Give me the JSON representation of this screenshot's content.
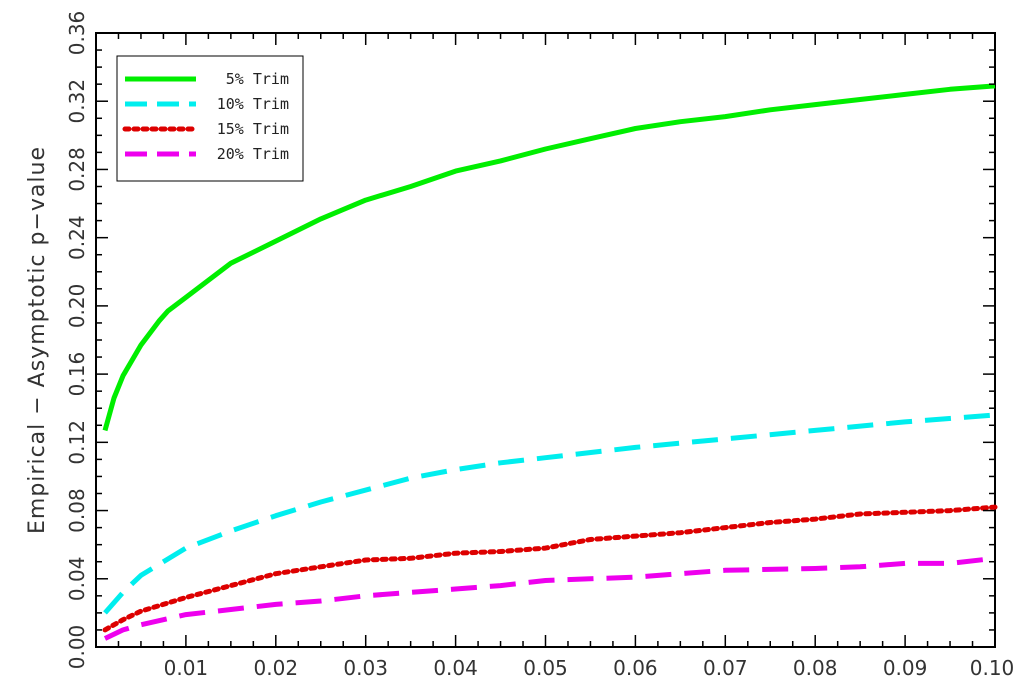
{
  "chart_data": {
    "type": "line",
    "xlabel": "",
    "ylabel": "Empirical  −  Asymptotic  p−value",
    "xlim": [
      0.0,
      0.1
    ],
    "ylim": [
      0.0,
      0.36
    ],
    "x_ticks": [
      0.01,
      0.02,
      0.03,
      0.04,
      0.05,
      0.06,
      0.07,
      0.08,
      0.09,
      0.1
    ],
    "x_tick_labels": [
      "0.01",
      "0.02",
      "0.03",
      "0.04",
      "0.05",
      "0.06",
      "0.07",
      "0.08",
      "0.09",
      "0.10"
    ],
    "y_ticks": [
      0.0,
      0.04,
      0.08,
      0.12,
      0.16,
      0.2,
      0.24,
      0.28,
      0.32,
      0.36
    ],
    "y_tick_labels": [
      "0.00",
      "0.04",
      "0.08",
      "0.12",
      "0.16",
      "0.20",
      "0.24",
      "0.28",
      "0.32",
      "0.36"
    ],
    "grid": false,
    "legend_position": "top-left",
    "series": [
      {
        "name": "5% Trim",
        "color": "#00ee00",
        "style": "solid",
        "x": [
          0.001,
          0.002,
          0.003,
          0.005,
          0.007,
          0.008,
          0.01,
          0.015,
          0.02,
          0.025,
          0.03,
          0.035,
          0.04,
          0.045,
          0.05,
          0.055,
          0.06,
          0.065,
          0.07,
          0.075,
          0.08,
          0.085,
          0.09,
          0.095,
          0.1
        ],
        "values": [
          0.127,
          0.146,
          0.159,
          0.177,
          0.191,
          0.197,
          0.205,
          0.225,
          0.238,
          0.251,
          0.262,
          0.27,
          0.279,
          0.285,
          0.292,
          0.298,
          0.304,
          0.308,
          0.311,
          0.315,
          0.318,
          0.321,
          0.324,
          0.327,
          0.329
        ]
      },
      {
        "name": "10% Trim",
        "color": "#00eeee",
        "style": "dashed",
        "x": [
          0.001,
          0.003,
          0.005,
          0.01,
          0.015,
          0.02,
          0.025,
          0.03,
          0.035,
          0.04,
          0.045,
          0.05,
          0.06,
          0.07,
          0.08,
          0.09,
          0.1
        ],
        "values": [
          0.02,
          0.032,
          0.042,
          0.058,
          0.068,
          0.077,
          0.085,
          0.092,
          0.099,
          0.104,
          0.108,
          0.111,
          0.117,
          0.122,
          0.127,
          0.132,
          0.136
        ]
      },
      {
        "name": "15% Trim",
        "color": "#dd0000",
        "style": "dotted",
        "x": [
          0.001,
          0.003,
          0.005,
          0.01,
          0.015,
          0.02,
          0.025,
          0.03,
          0.035,
          0.04,
          0.045,
          0.05,
          0.055,
          0.06,
          0.065,
          0.07,
          0.075,
          0.08,
          0.085,
          0.09,
          0.095,
          0.1
        ],
        "values": [
          0.01,
          0.016,
          0.021,
          0.029,
          0.036,
          0.043,
          0.047,
          0.051,
          0.052,
          0.055,
          0.056,
          0.058,
          0.063,
          0.065,
          0.067,
          0.07,
          0.073,
          0.075,
          0.078,
          0.079,
          0.08,
          0.082
        ]
      },
      {
        "name": "20% Trim",
        "color": "#ee00ee",
        "style": "dashed",
        "x": [
          0.001,
          0.003,
          0.005,
          0.01,
          0.015,
          0.02,
          0.025,
          0.03,
          0.035,
          0.04,
          0.045,
          0.05,
          0.06,
          0.07,
          0.08,
          0.085,
          0.09,
          0.095,
          0.1
        ],
        "values": [
          0.005,
          0.01,
          0.013,
          0.019,
          0.022,
          0.025,
          0.027,
          0.03,
          0.032,
          0.034,
          0.036,
          0.039,
          0.041,
          0.045,
          0.046,
          0.047,
          0.049,
          0.049,
          0.052
        ]
      }
    ]
  }
}
